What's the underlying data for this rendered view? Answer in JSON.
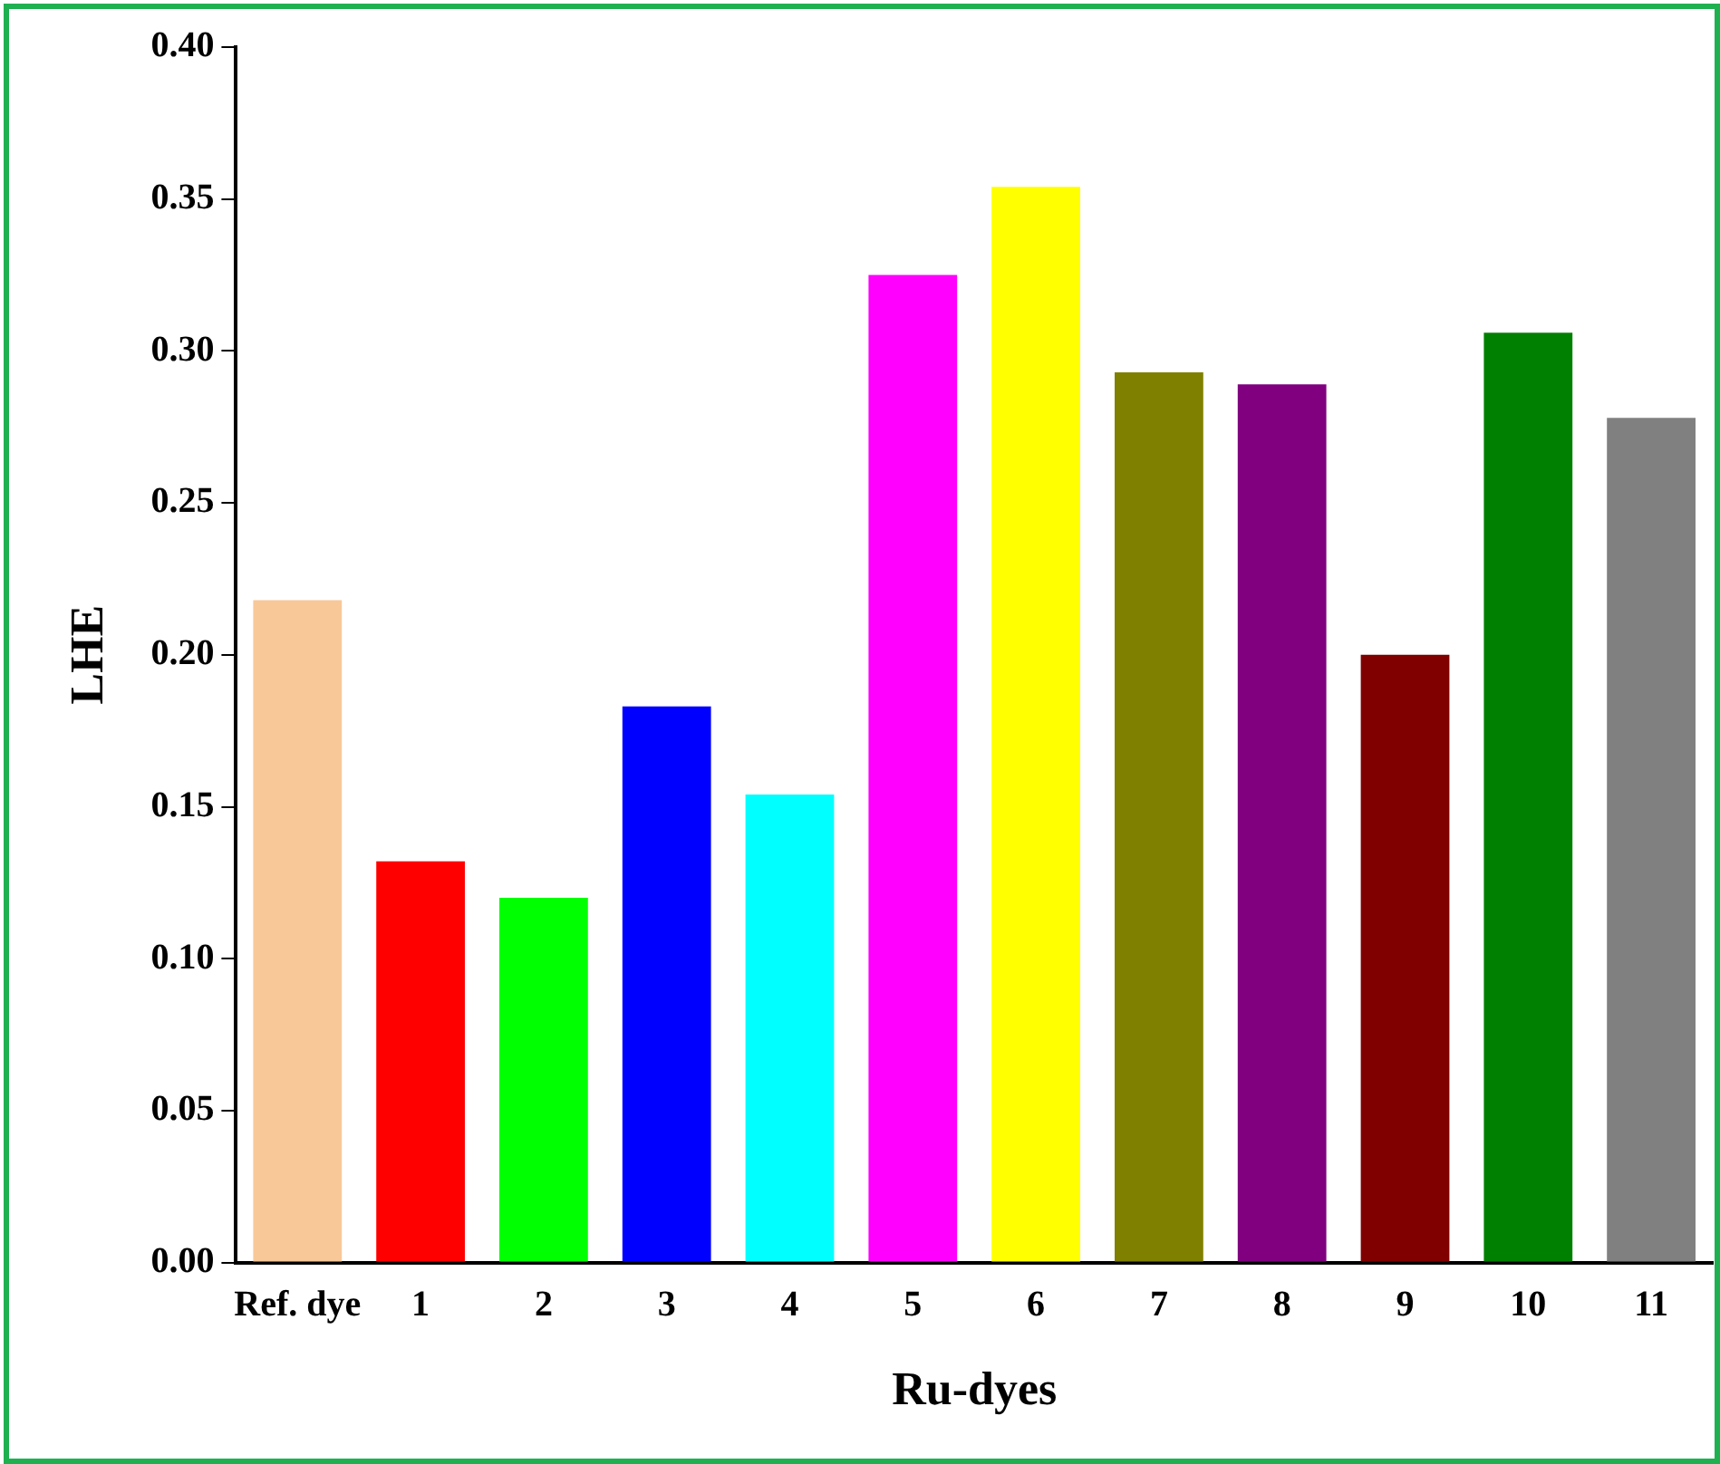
{
  "chart_data": {
    "type": "bar",
    "xlabel": "Ru-dyes",
    "ylabel": "LHE",
    "categories": [
      "Ref. dye",
      "1",
      "2",
      "3",
      "4",
      "5",
      "6",
      "7",
      "8",
      "9",
      "10",
      "11"
    ],
    "values": [
      0.218,
      0.132,
      0.12,
      0.183,
      0.154,
      0.325,
      0.354,
      0.293,
      0.289,
      0.2,
      0.306,
      0.278
    ],
    "colors": [
      "#f8c898",
      "#ff0000",
      "#00ff00",
      "#0000ff",
      "#00ffff",
      "#ff00ff",
      "#ffff00",
      "#808000",
      "#800080",
      "#800000",
      "#008000",
      "#808080"
    ],
    "ylim": [
      0,
      0.4
    ],
    "yticks": [
      {
        "value": 0,
        "label": "0.00"
      },
      {
        "value": 0.05,
        "label": "0.05"
      },
      {
        "value": 0.1,
        "label": "0.10"
      },
      {
        "value": 0.15,
        "label": "0.15"
      },
      {
        "value": 0.2,
        "label": "0.20"
      },
      {
        "value": 0.25,
        "label": "0.25"
      },
      {
        "value": 0.3,
        "label": "0.30"
      },
      {
        "value": 0.35,
        "label": "0.35"
      },
      {
        "value": 0.4,
        "label": "0.40"
      }
    ],
    "grid": false,
    "legend": false
  }
}
